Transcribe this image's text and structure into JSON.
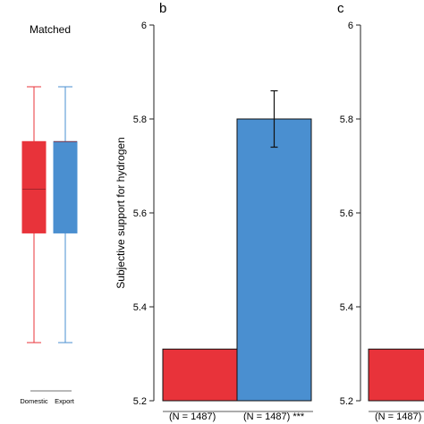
{
  "panels": {
    "left": {
      "title": "Matched",
      "xticks": [
        "Domestic",
        "Export"
      ]
    },
    "b": {
      "label": "b"
    },
    "c": {
      "label": "c"
    }
  },
  "chart_data": [
    {
      "panel": "left",
      "type": "box",
      "title": "Matched",
      "categories": [
        "Domestic",
        "Export"
      ],
      "colors": [
        "#e8333a",
        "#4a8fd0"
      ],
      "boxes": [
        {
          "name": "Domestic",
          "whisker_low": 5.2,
          "q1": 5.5,
          "median": 5.62,
          "q3": 5.75,
          "whisker_high": 5.9
        },
        {
          "name": "Export",
          "whisker_low": 5.2,
          "q1": 5.5,
          "median": 5.75,
          "q3": 5.75,
          "whisker_high": 5.9
        }
      ]
    },
    {
      "panel": "b",
      "type": "bar",
      "ylabel": "Subjective support for hydrogen",
      "ylim": [
        5.2,
        6.0
      ],
      "yticks": [
        "5.2",
        "5.4",
        "5.6",
        "5.8",
        "6"
      ],
      "categories": [
        "(N = 1487)",
        "(N = 1487) ***"
      ],
      "values": [
        5.31,
        5.8
      ],
      "error_bars": [
        null,
        [
          5.74,
          5.86
        ]
      ],
      "colors": [
        "#e8333a",
        "#4a8fd0"
      ]
    },
    {
      "panel": "c",
      "type": "bar",
      "ylim": [
        5.2,
        6.0
      ],
      "yticks": [
        "5.2",
        "5.4",
        "5.6",
        "5.8",
        "6"
      ],
      "categories": [
        "(N = 1487)"
      ],
      "values": [
        5.31
      ],
      "colors": [
        "#e8333a"
      ]
    }
  ]
}
